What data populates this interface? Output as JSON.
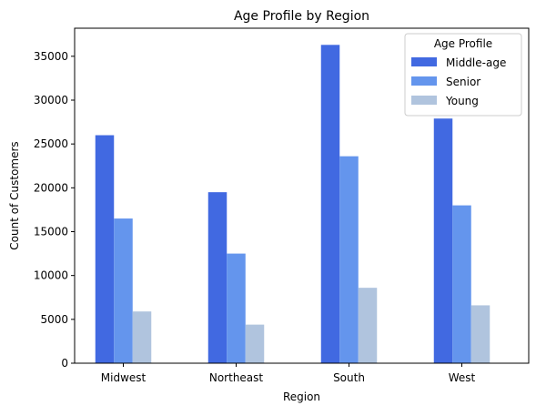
{
  "chart_data": {
    "type": "bar",
    "title": "Age Profile by Region",
    "xlabel": "Region",
    "ylabel": "Count of Customers",
    "categories": [
      "Midwest",
      "Northeast",
      "South",
      "West"
    ],
    "series": [
      {
        "name": "Middle-age",
        "values": [
          26000,
          19500,
          36300,
          27900
        ],
        "color": "#4169e1"
      },
      {
        "name": "Senior",
        "values": [
          16500,
          12500,
          23600,
          18000
        ],
        "color": "#6495ed"
      },
      {
        "name": "Young",
        "values": [
          5900,
          4400,
          8600,
          6600
        ],
        "color": "#b0c4de"
      }
    ],
    "ylim": [
      0,
      38200
    ],
    "yticks": [
      0,
      5000,
      10000,
      15000,
      20000,
      25000,
      30000,
      35000
    ],
    "grid": false,
    "legend": {
      "title": "Age Profile",
      "placement": "top-right"
    }
  }
}
